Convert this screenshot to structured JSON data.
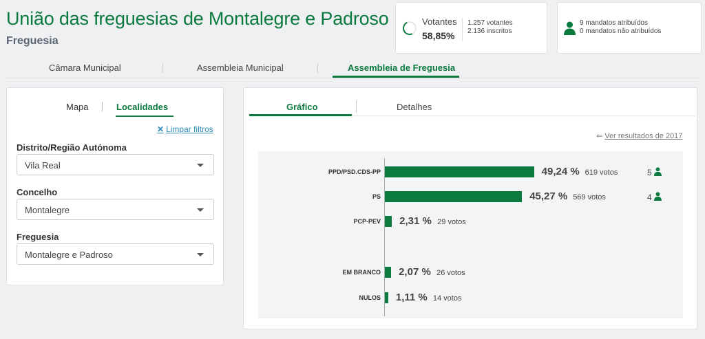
{
  "header": {
    "title": "União das freguesias de Montalegre e Padroso",
    "subtitle": "Freguesia"
  },
  "turnout": {
    "label": "Votantes",
    "percent": "58,85%",
    "fraction": 0.5885,
    "voters": "1.257 votantes",
    "registered": "2.136 inscritos"
  },
  "mandates": {
    "assigned": "9 mandatos atribuídos",
    "unassigned": "0 mandatos não atribuídos"
  },
  "top_tabs": [
    {
      "label": "Câmara Municipal"
    },
    {
      "label": "Assembleia Municipal"
    },
    {
      "label": "Assembleia de Freguesia"
    }
  ],
  "left_panel": {
    "tabs": [
      {
        "label": "Mapa"
      },
      {
        "label": "Localidades"
      }
    ],
    "clear_filters": "Limpar filtros",
    "fields": [
      {
        "label": "Distrito/Região Autónoma",
        "value": "Vila Real"
      },
      {
        "label": "Concelho",
        "value": "Montalegre"
      },
      {
        "label": "Freguesia",
        "value": "Montalegre e Padroso"
      }
    ]
  },
  "right_panel": {
    "tabs": [
      {
        "label": "Gráfico"
      },
      {
        "label": "Detalhes"
      }
    ],
    "previous_results": "Ver resultados de 2017"
  },
  "colors": {
    "accent": "#0b7a3e",
    "link": "#2a8bb8"
  },
  "chart_data": {
    "type": "bar",
    "orientation": "horizontal",
    "categories": [
      "PPD/PSD.CDS-PP",
      "PS",
      "PCP-PEV",
      "EM BRANCO",
      "NULOS"
    ],
    "values": [
      49.24,
      45.27,
      2.31,
      2.07,
      1.11
    ],
    "value_labels": [
      "49,24 %",
      "45,27 %",
      "2,31 %",
      "2,07 %",
      "1,11 %"
    ],
    "votes": [
      "619 votos",
      "569 votos",
      "29 votos",
      "26 votos",
      "14 votos"
    ],
    "seats": [
      "5",
      "4",
      "",
      "",
      ""
    ]
  }
}
